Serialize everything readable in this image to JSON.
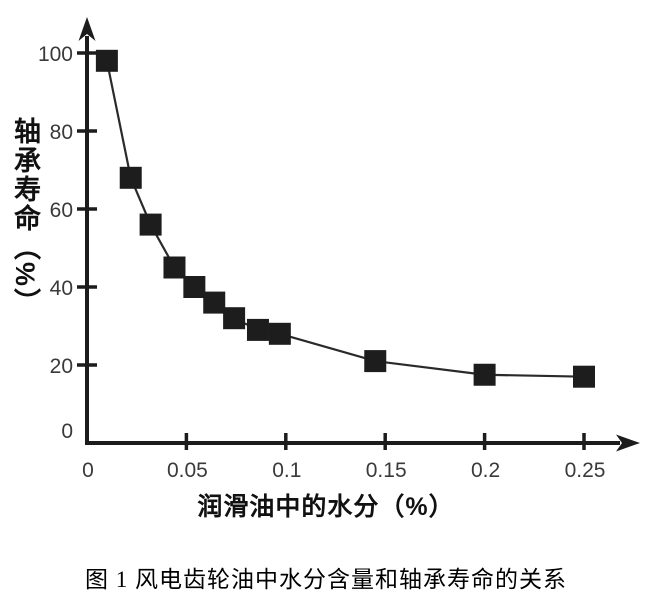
{
  "figure": {
    "caption": "图 1 风电齿轮油中水分含量和轴承寿命的关系"
  },
  "chart_data": {
    "type": "line",
    "title": "",
    "xlabel": "润滑油中的水分（%）",
    "ylabel": "轴承寿命（%）",
    "x": [
      0.01,
      0.022,
      0.032,
      0.044,
      0.054,
      0.064,
      0.074,
      0.086,
      0.097,
      0.145,
      0.2,
      0.25
    ],
    "y": [
      98,
      68,
      56,
      45,
      40,
      36,
      32,
      29,
      28,
      21,
      17.5,
      17
    ],
    "x_ticks": [
      0,
      0.05,
      0.1,
      0.15,
      0.2,
      0.25
    ],
    "x_tick_labels": [
      "0",
      "0.05",
      "0.1",
      "0.15",
      "0.2",
      "0.25"
    ],
    "y_ticks": [
      0,
      20,
      40,
      60,
      80,
      100
    ],
    "y_tick_labels": [
      "0",
      "20",
      "40",
      "60",
      "80",
      "100"
    ],
    "xlim": [
      0,
      0.27
    ],
    "ylim": [
      0,
      107
    ],
    "grid": false,
    "legend": null,
    "marker": "filled-square",
    "marker_size": 22,
    "colors": {
      "axis": "#1c1c1c",
      "line": "#2a2a2a",
      "marker": "#1d1d1d",
      "tick_label": "#3a3a3a",
      "axis_title": "#111111",
      "caption": "#000000"
    }
  }
}
